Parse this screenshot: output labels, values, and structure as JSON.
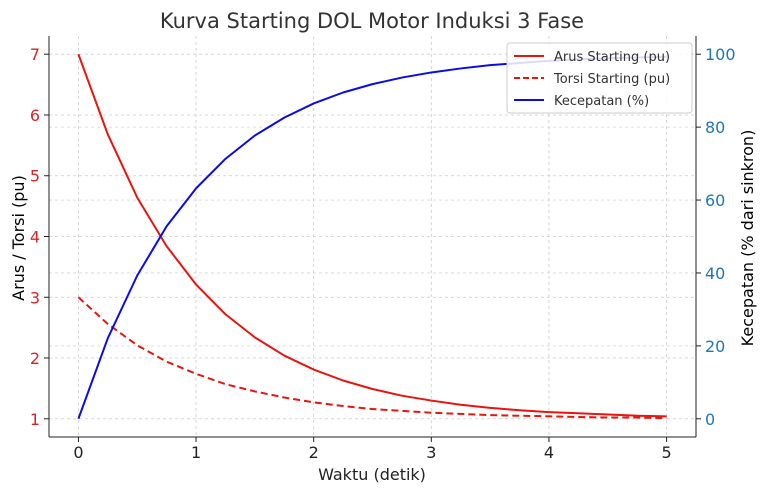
{
  "chart_data": {
    "type": "line",
    "title": "Kurva Starting DOL Motor Induksi 3 Fase",
    "xlabel": "Waktu (detik)",
    "ylabel": "Arus / Torsi (pu)",
    "ylabel_right": "Kecepatan (% dari sinkron)",
    "xlim": [
      -0.25,
      5.25
    ],
    "ylim": [
      0.7,
      7.3
    ],
    "ylim_right": [
      -5,
      105
    ],
    "x_ticks": [
      "0",
      "1",
      "2",
      "3",
      "4",
      "5"
    ],
    "y_ticks": [
      "1",
      "2",
      "3",
      "4",
      "5",
      "6",
      "7"
    ],
    "y_ticks_right": [
      "0",
      "20",
      "40",
      "60",
      "80",
      "100"
    ],
    "grid": true,
    "legend_position": "top-right",
    "colors": {
      "left_axis": "#d62728",
      "right_axis": "#1f77b4"
    },
    "series": [
      {
        "name": "Arus Starting (pu)",
        "axis": "left",
        "color": "#e8140e",
        "style": "solid",
        "x": [
          0,
          0.25,
          0.5,
          0.75,
          1,
          1.25,
          1.5,
          1.75,
          2,
          2.25,
          2.5,
          2.75,
          3,
          3.25,
          3.5,
          3.75,
          4,
          4.25,
          4.5,
          4.75,
          5
        ],
        "y": [
          7.0,
          5.68,
          4.64,
          3.84,
          3.21,
          2.72,
          2.34,
          2.04,
          1.81,
          1.63,
          1.49,
          1.38,
          1.3,
          1.23,
          1.18,
          1.14,
          1.11,
          1.09,
          1.07,
          1.05,
          1.04
        ]
      },
      {
        "name": "Torsi Starting (pu)",
        "axis": "left",
        "color": "#e8140e",
        "style": "dashed",
        "x": [
          0,
          0.25,
          0.5,
          0.75,
          1,
          1.25,
          1.5,
          1.75,
          2,
          2.25,
          2.5,
          2.75,
          3,
          3.25,
          3.5,
          3.75,
          4,
          4.25,
          4.5,
          4.75,
          5
        ],
        "y": [
          3.0,
          2.56,
          2.21,
          1.94,
          1.74,
          1.57,
          1.45,
          1.35,
          1.27,
          1.21,
          1.16,
          1.13,
          1.1,
          1.08,
          1.06,
          1.05,
          1.04,
          1.03,
          1.02,
          1.02,
          1.01
        ]
      },
      {
        "name": "Kecepatan (%)",
        "axis": "right",
        "color": "#0b0be6",
        "style": "solid",
        "x": [
          0,
          0.25,
          0.5,
          0.75,
          1,
          1.25,
          1.5,
          1.75,
          2,
          2.25,
          2.5,
          2.75,
          3,
          3.25,
          3.5,
          3.75,
          4,
          4.25,
          4.5,
          4.75,
          5
        ],
        "y": [
          0,
          22.1,
          39.3,
          52.8,
          63.2,
          71.3,
          77.7,
          82.6,
          86.5,
          89.5,
          91.8,
          93.6,
          95.0,
          96.1,
          97.0,
          97.6,
          98.2,
          98.6,
          98.9,
          99.1,
          99.3
        ]
      }
    ]
  }
}
